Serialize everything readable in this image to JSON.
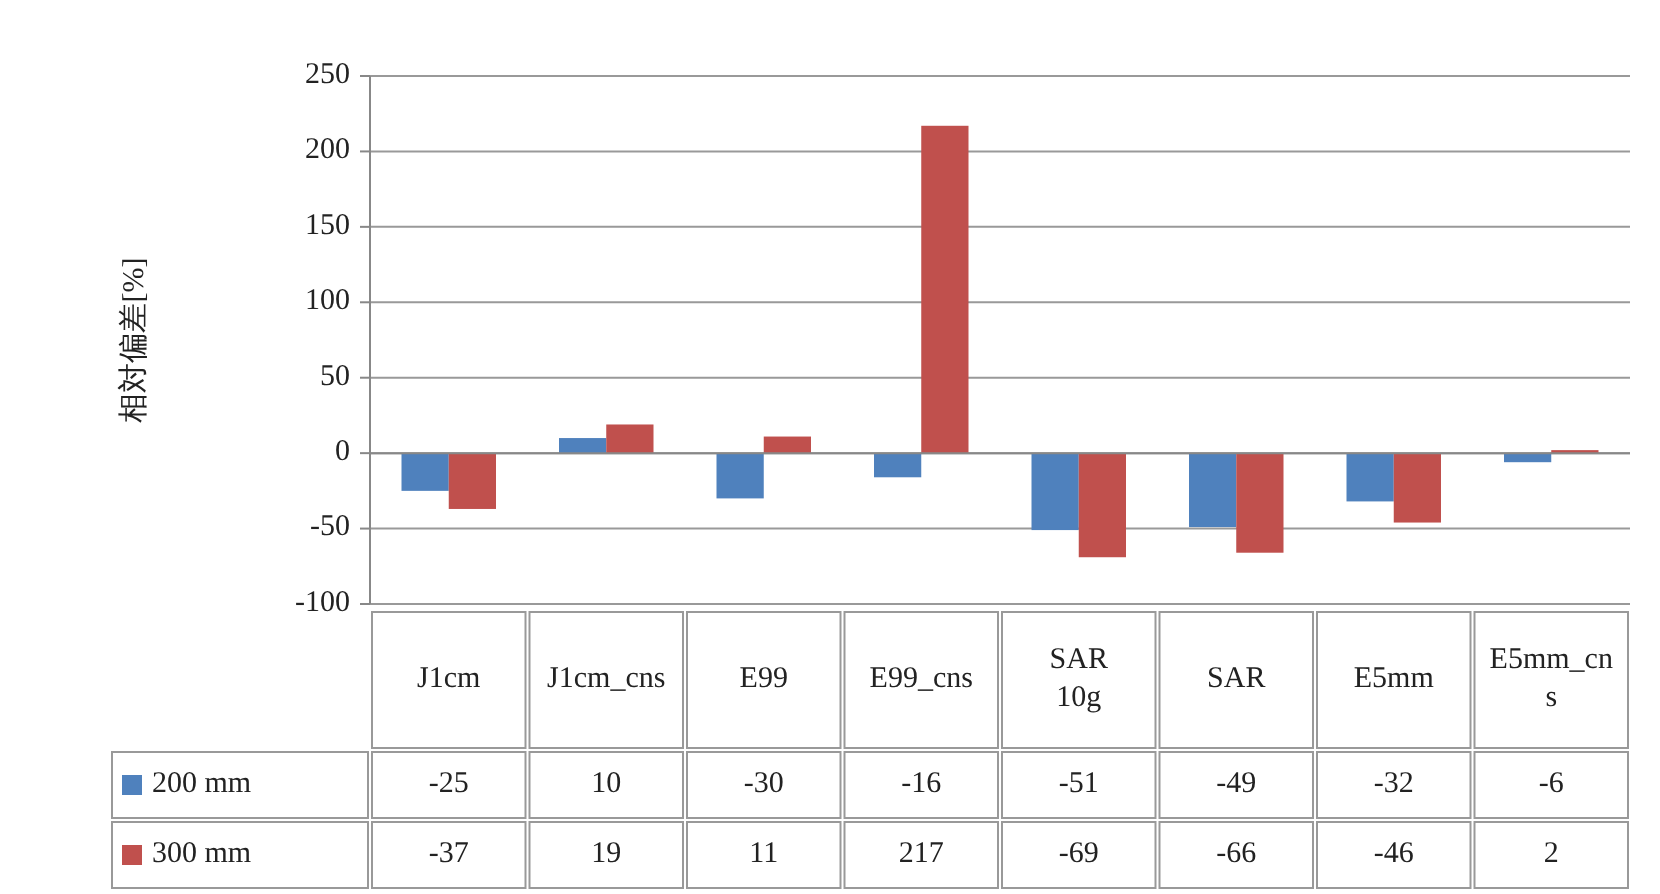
{
  "chart_data": {
    "type": "bar",
    "ylabel": "相対偏差[%]",
    "categories": [
      "J1cm",
      "J1cm_cns",
      "E99",
      "E99_cns",
      "SAR 10g",
      "SAR",
      "E5mm",
      "E5mm_cns"
    ],
    "series": [
      {
        "name": "200 mm",
        "color": "#4f81bd",
        "values": [
          -25,
          10,
          -30,
          -16,
          -51,
          -49,
          -32,
          -6
        ]
      },
      {
        "name": "300 mm",
        "color": "#c0504d",
        "values": [
          -37,
          19,
          11,
          217,
          -69,
          -66,
          -46,
          2
        ]
      }
    ],
    "ylim": [
      -100,
      250
    ],
    "yticks": [
      -100,
      -50,
      0,
      50,
      100,
      150,
      200,
      250
    ],
    "grid": "y",
    "legend": "bottom",
    "data_labels": true
  }
}
